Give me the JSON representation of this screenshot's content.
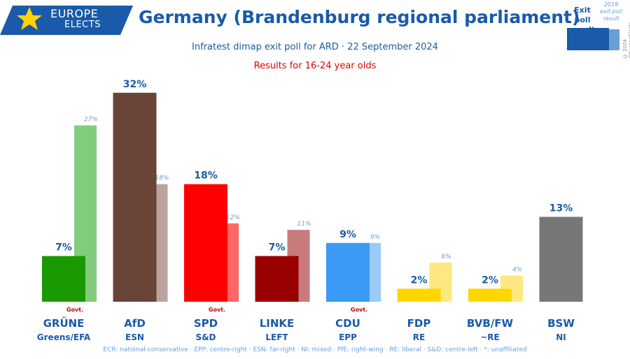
{
  "logo": {
    "line1": "EUROPE",
    "line2": "ELECTS"
  },
  "header": {
    "title": "Germany (Brandenburg regional parliament)",
    "subtitle": "Infratest dimap exit poll for ARD · 22 September 2024",
    "group": "Results for 16-24 year olds"
  },
  "legend": {
    "current": "Exit poll result",
    "previous": "2019 exit poll result"
  },
  "copyright": "© 2024 @EuropeElects",
  "footer": "ECR: national-conservative · EPP: centre-right · ESN: far-right · NI: mixed · PfE: right-wing · RE: liberal · S&D: centre-left · *: unaffiliated",
  "colors": {
    "brand": "#1a5aa8",
    "govt": "#c00000",
    "previous_label": "#6a9ed6"
  },
  "chart_data": {
    "type": "bar",
    "ylim": [
      0,
      35
    ],
    "series": [
      {
        "name": "Exit poll result",
        "values": [
          7,
          32,
          18,
          7,
          9,
          2,
          2,
          13
        ]
      },
      {
        "name": "2019 exit poll result",
        "values": [
          27,
          18,
          12,
          11,
          9,
          6,
          4,
          null
        ]
      }
    ],
    "parties": [
      {
        "name": "GRÜNE",
        "group": "Greens/EFA",
        "value": 7,
        "value_label": "7%",
        "prev": 27,
        "prev_label": "27%",
        "govt": "Govt.",
        "color": "#1a9a00",
        "prev_color": "#82cc7e"
      },
      {
        "name": "AfD",
        "group": "ESN",
        "value": 32,
        "value_label": "32%",
        "prev": 18,
        "prev_label": "18%",
        "govt": "",
        "color": "#6b4438",
        "prev_color": "#bba49e"
      },
      {
        "name": "SPD",
        "group": "S&D",
        "value": 18,
        "value_label": "18%",
        "prev": 12,
        "prev_label": "12%",
        "govt": "Govt.",
        "color": "#ff0000",
        "prev_color": "#ff6666"
      },
      {
        "name": "LINKE",
        "group": "LEFT",
        "value": 7,
        "value_label": "7%",
        "prev": 11,
        "prev_label": "11%",
        "govt": "",
        "color": "#990000",
        "prev_color": "#c97a7a"
      },
      {
        "name": "CDU",
        "group": "EPP",
        "value": 9,
        "value_label": "9%",
        "prev": 9,
        "prev_label": "9%",
        "govt": "Govt.",
        "color": "#3a9af6",
        "prev_color": "#9ccaf8"
      },
      {
        "name": "FDP",
        "group": "RE",
        "value": 2,
        "value_label": "2%",
        "prev": 6,
        "prev_label": "6%",
        "govt": "",
        "color": "#ffd700",
        "prev_color": "#ffe880"
      },
      {
        "name": "BVB/FW",
        "group": "~RE",
        "value": 2,
        "value_label": "2%",
        "prev": 4,
        "prev_label": "4%",
        "govt": "",
        "color": "#ffd700",
        "prev_color": "#ffe880"
      },
      {
        "name": "BSW",
        "group": "NI",
        "value": 13,
        "value_label": "13%",
        "prev": null,
        "prev_label": "",
        "govt": "",
        "color": "#777777",
        "prev_color": "#cccccc"
      }
    ]
  }
}
